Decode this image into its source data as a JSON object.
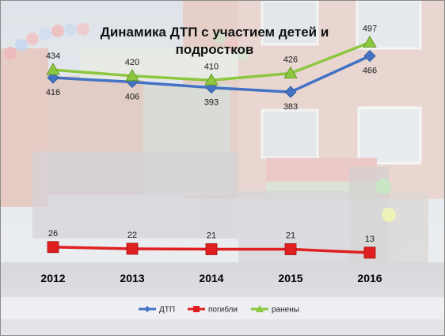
{
  "chart_data": {
    "type": "line",
    "title": "Динамика ДТП с участием детей и подростков",
    "title_lines": [
      "Динамика ДТП с участием детей и",
      "подростков"
    ],
    "x": [
      "2012",
      "2013",
      "2014",
      "2015",
      "2016"
    ],
    "series": [
      {
        "name": "ДТП",
        "values": [
          416,
          406,
          393,
          383,
          466
        ],
        "color": "#4472C4",
        "marker": "diamond"
      },
      {
        "name": "погибли",
        "values": [
          26,
          22,
          21,
          21,
          13
        ],
        "color": "#E02020",
        "marker": "square"
      },
      {
        "name": "ранены",
        "values": [
          434,
          420,
          410,
          426,
          497
        ],
        "color": "#8DC63F",
        "marker": "triangle"
      }
    ],
    "label_positions": {
      "ДТП": "below",
      "погибли": "above",
      "ранены": "above"
    },
    "ylim": [
      0,
      520
    ],
    "grid": false,
    "axes_visible": false,
    "legend": "bottom-center"
  }
}
